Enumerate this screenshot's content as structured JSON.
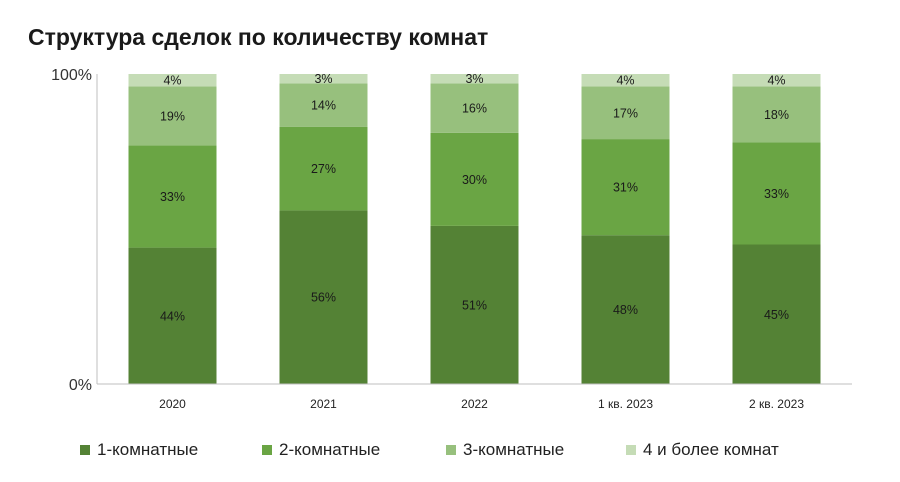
{
  "chart_data": {
    "type": "bar",
    "stacked": true,
    "percent": true,
    "title": "Структура сделок по количеству комнат",
    "categories": [
      "2020",
      "2021",
      "2022",
      "1 кв. 2023",
      "2 кв. 2023"
    ],
    "ylim": [
      0,
      100
    ],
    "yticks": [
      "0%",
      "100%"
    ],
    "grid": false,
    "legend_position": "bottom",
    "series": [
      {
        "name": "1-комнатные",
        "color": "#548235",
        "values": [
          44,
          56,
          51,
          48,
          45
        ],
        "labels": [
          "44%",
          "56%",
          "51%",
          "48%",
          "45%"
        ]
      },
      {
        "name": "2-комнатные",
        "color": "#6aa544",
        "values": [
          33,
          27,
          30,
          31,
          33
        ],
        "labels": [
          "33%",
          "27%",
          "30%",
          "31%",
          "33%"
        ]
      },
      {
        "name": "3-комнатные",
        "color": "#97c07d",
        "values": [
          19,
          14,
          16,
          17,
          18
        ],
        "labels": [
          "19%",
          "14%",
          "16%",
          "17%",
          "18%"
        ]
      },
      {
        "name": "4 и более комнат",
        "color": "#c5dcb6",
        "values": [
          4,
          3,
          3,
          4,
          4
        ],
        "labels": [
          "4%",
          "3%",
          "3%",
          "4%",
          "4%"
        ]
      }
    ]
  }
}
